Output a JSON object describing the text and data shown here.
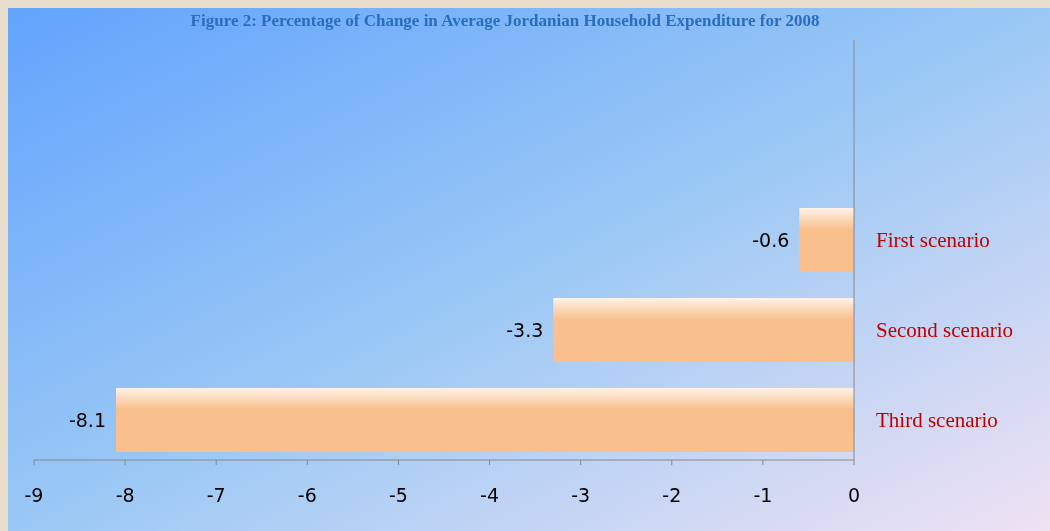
{
  "chart_data": {
    "type": "bar",
    "orientation": "horizontal",
    "title": "Figure 2: Percentage of Change in Average Jordanian Household Expenditure for 2008",
    "categories": [
      "First scenario",
      "Second scenario",
      "Third scenario"
    ],
    "values": [
      -0.6,
      -3.3,
      -8.1
    ],
    "color": "#f9c08e",
    "data_labels": true,
    "xlim": [
      -9,
      0
    ],
    "xticks": [
      -9,
      -8,
      -7,
      -6,
      -5,
      -4,
      -3,
      -2,
      -1,
      0
    ],
    "grid": false
  }
}
